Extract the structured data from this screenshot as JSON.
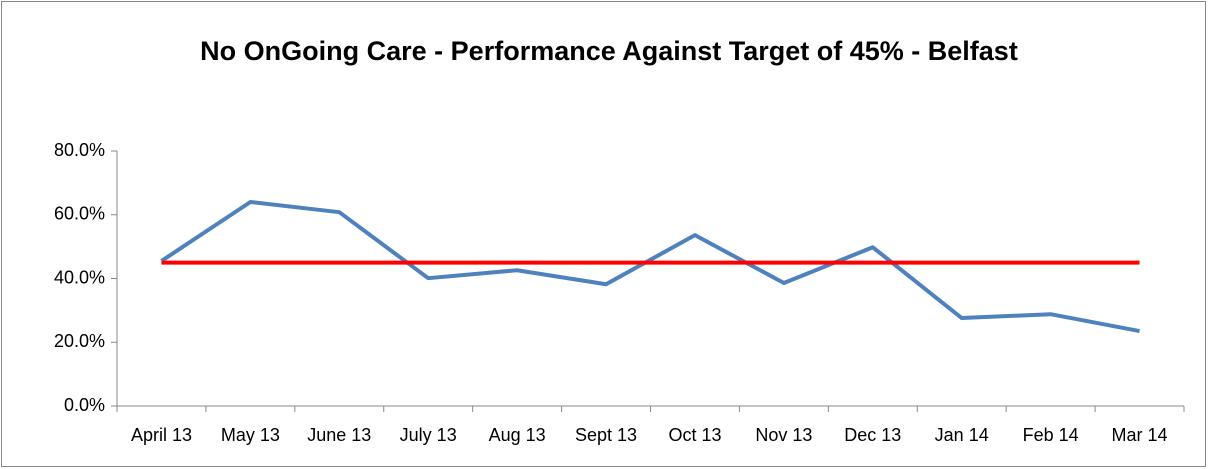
{
  "chart_data": {
    "type": "line",
    "title": "No OnGoing Care -  Performance Against Target of 45% - Belfast",
    "categories": [
      "April 13",
      "May 13",
      "June 13",
      "July 13",
      "Aug 13",
      "Sept 13",
      "Oct 13",
      "Nov 13",
      "Dec 13",
      "Jan 14",
      "Feb 14",
      "Mar 14"
    ],
    "series": [
      {
        "color": "#4f81bd",
        "values": [
          45.5,
          64.0,
          60.8,
          40.1,
          42.6,
          38.2,
          53.6,
          38.6,
          49.8,
          27.6,
          28.8,
          23.5
        ]
      },
      {
        "color": "#ff0000",
        "values": [
          45,
          45,
          45,
          45,
          45,
          45,
          45,
          45,
          45,
          45,
          45,
          45
        ]
      }
    ],
    "ylim": [
      0,
      80
    ],
    "yticks": [
      {
        "value": 0,
        "label": "0.0%"
      },
      {
        "value": 20,
        "label": "20.0%"
      },
      {
        "value": 40,
        "label": "40.0%"
      },
      {
        "value": 60,
        "label": "60.0%"
      },
      {
        "value": 80,
        "label": "80.0%"
      }
    ],
    "grid": false
  }
}
